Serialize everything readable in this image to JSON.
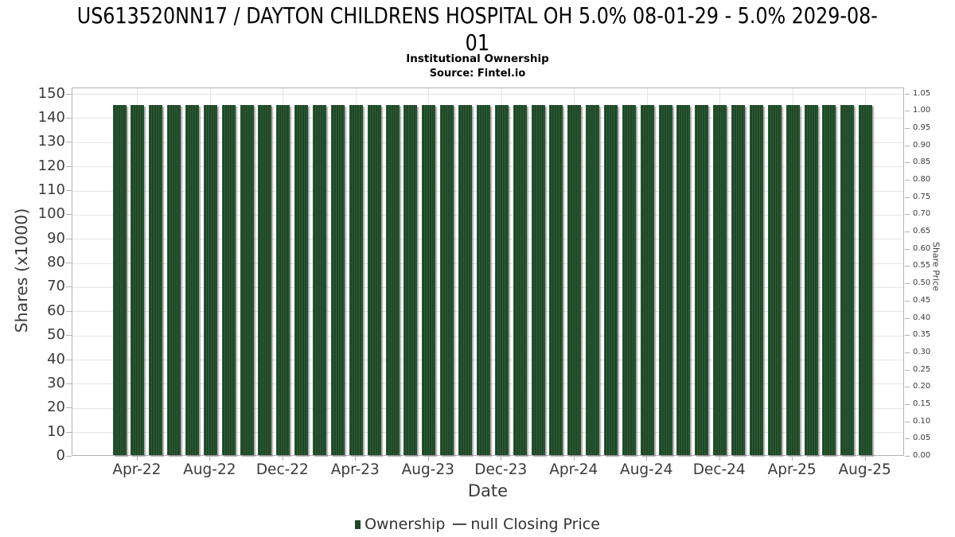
{
  "page": {
    "background": "#ffffff"
  },
  "chart_data": {
    "type": "bar",
    "title": "US613520NN17 / DAYTON CHILDRENS HOSPITAL OH 5.0% 08-01-29 - 5.0% 2029-08-01",
    "title_lines": [
      "US613520NN17 / DAYTON CHILDRENS HOSPITAL OH 5.0% 08-01-29 - 5.0% 2029-08-",
      "01"
    ],
    "subtitle": "Institutional Ownership",
    "source": "Source: Fintel.io",
    "xlabel": "Date",
    "ylabel_left": "Shares (x1000)",
    "ylabel_right": "Share Price",
    "categories": [
      "Mar-22",
      "Apr-22",
      "May-22",
      "Jun-22",
      "Jul-22",
      "Aug-22",
      "Sep-22",
      "Oct-22",
      "Nov-22",
      "Dec-22",
      "Jan-23",
      "Feb-23",
      "Mar-23",
      "Apr-23",
      "May-23",
      "Jun-23",
      "Jul-23",
      "Aug-23",
      "Sep-23",
      "Oct-23",
      "Nov-23",
      "Dec-23",
      "Jan-24",
      "Feb-24",
      "Mar-24",
      "Apr-24",
      "May-24",
      "Jun-24",
      "Jul-24",
      "Aug-24",
      "Sep-24",
      "Oct-24",
      "Nov-24",
      "Dec-24",
      "Jan-25",
      "Feb-25",
      "Mar-25",
      "Apr-25",
      "May-25",
      "Jun-25",
      "Jul-25",
      "Aug-25"
    ],
    "series": [
      {
        "name": "Ownership",
        "type": "column",
        "color": "#1e4726",
        "values": [
          145,
          145,
          145,
          145,
          145,
          145,
          145,
          145,
          145,
          145,
          145,
          145,
          145,
          145,
          145,
          145,
          145,
          145,
          145,
          145,
          145,
          145,
          145,
          145,
          145,
          145,
          145,
          145,
          145,
          145,
          145,
          145,
          145,
          145,
          145,
          145,
          145,
          145,
          145,
          145,
          145,
          145
        ]
      },
      {
        "name": "null Closing Price",
        "type": "line",
        "color": "#4d4d4d",
        "values": []
      }
    ],
    "y_left": {
      "min": 0,
      "max": 150,
      "tick_step": 10,
      "ticks": [
        0,
        10,
        20,
        30,
        40,
        50,
        60,
        70,
        80,
        90,
        100,
        110,
        120,
        130,
        140,
        150
      ]
    },
    "y_right": {
      "min": 0.0,
      "max": 1.05,
      "tick_step": 0.05,
      "ticks": [
        "0.00",
        "0.05",
        "0.10",
        "0.15",
        "0.20",
        "0.25",
        "0.30",
        "0.35",
        "0.40",
        "0.45",
        "0.50",
        "0.55",
        "0.60",
        "0.65",
        "0.70",
        "0.75",
        "0.80",
        "0.85",
        "0.90",
        "0.95",
        "1.00",
        "1.05"
      ]
    },
    "x_tick_labels": [
      "Apr-22",
      "Aug-22",
      "Dec-22",
      "Apr-23",
      "Aug-23",
      "Dec-23",
      "Apr-24",
      "Aug-24",
      "Dec-24",
      "Apr-25",
      "Aug-25"
    ],
    "x_tick_indices": [
      1,
      5,
      9,
      13,
      17,
      21,
      25,
      29,
      33,
      37,
      41
    ],
    "grid": true,
    "legend_position": "bottom",
    "colors": {
      "bar": "#1e4726",
      "bar_stripe": "#2e5d37",
      "grid": "#e4e4e4",
      "axis_border": "#b3b3b3",
      "tick_text": "#3b3b3b",
      "title_text": "#000000"
    }
  }
}
